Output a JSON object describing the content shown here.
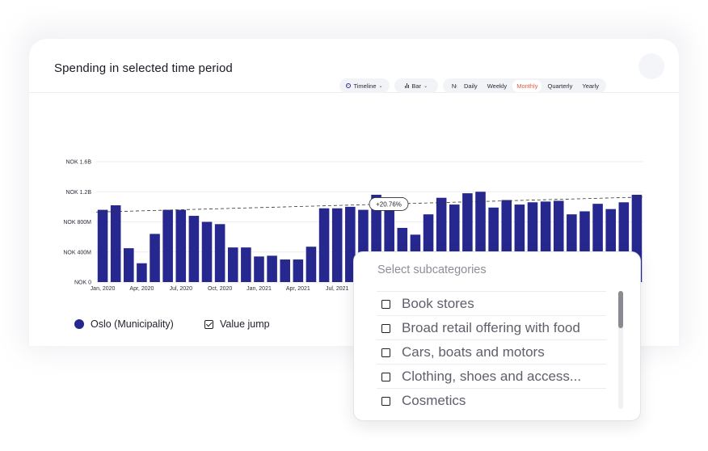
{
  "card": {
    "title": "Spending in selected time period"
  },
  "controls": {
    "view_label": "Timeline",
    "chart_type_label": "Bar",
    "currency_label": "NOK",
    "periods": [
      "Daily",
      "Weekly",
      "Monthly",
      "Quarterly",
      "Yearly"
    ],
    "active_period": "Monthly"
  },
  "legend": {
    "series_label": "Oslo (Municipality)",
    "value_jump_label": "Value jump"
  },
  "colors": {
    "bar": "#26288f",
    "accent": "#e05a48"
  },
  "dropdown": {
    "placeholder": "Select subcategories",
    "items": [
      "Book stores",
      "Broad retail offering with food",
      "Cars, boats and motors",
      "Clothing, shoes and access...",
      "Cosmetics"
    ]
  },
  "chart_data": {
    "type": "bar",
    "title": "Spending in selected time period",
    "ytick_labels": [
      "NOK 0",
      "NOK 400M",
      "NOK 800M",
      "NOK 1.2B",
      "NOK 1.6B"
    ],
    "yticks": [
      0,
      400,
      800,
      1200,
      1600
    ],
    "ylim": [
      0,
      1600
    ],
    "y_unit": "NOK millions",
    "xtick_labels": [
      "Jan, 2020",
      "Apr, 2020",
      "Jul, 2020",
      "Oct, 2020",
      "Jan, 2021",
      "Apr, 2021",
      "Jul, 2021"
    ],
    "xtick_indices": [
      0,
      3,
      6,
      9,
      12,
      15,
      18
    ],
    "grid": true,
    "series": [
      {
        "name": "Oslo (Municipality)",
        "values": [
          960,
          1020,
          450,
          250,
          640,
          960,
          960,
          880,
          800,
          770,
          460,
          460,
          340,
          350,
          300,
          300,
          470,
          980,
          980,
          1000,
          960,
          1160,
          960,
          720,
          630,
          900,
          1120,
          1030,
          1180,
          1200,
          990,
          1090,
          1030,
          1060,
          1070,
          1080,
          900,
          940,
          1040,
          970,
          1060,
          1160
        ]
      }
    ],
    "trendline": {
      "start": 930,
      "end": 1130,
      "label": "+20.76%"
    }
  }
}
